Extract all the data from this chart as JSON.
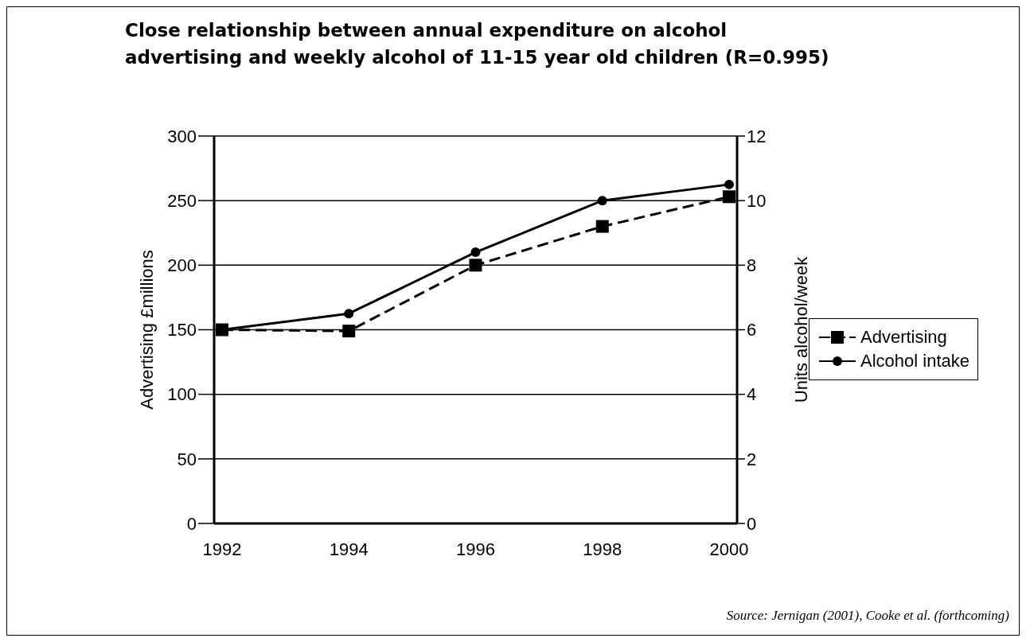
{
  "chart_data": {
    "type": "line",
    "title": "Close relationship between annual expenditure on alcohol advertising and weekly alcohol of 11-15 year old children (R=0.995)",
    "categories": [
      "1992",
      "1994",
      "1996",
      "1998",
      "2000"
    ],
    "series": [
      {
        "name": "Advertising",
        "color": "#000000",
        "values": [
          150,
          149,
          200,
          230,
          253
        ],
        "marker": "square",
        "line_style": "dashed"
      },
      {
        "name": "Alcohol intake",
        "color": "#000000",
        "values": [
          6.0,
          6.5,
          8.4,
          10.0,
          10.5
        ],
        "marker": "circle",
        "line_style": "solid",
        "axis": "y2"
      }
    ],
    "ylabel": "Advertising £millions",
    "y2label": "Units alcohol/week",
    "ylim": [
      0,
      300
    ],
    "yticks": [
      0,
      50,
      100,
      150,
      200,
      250,
      300
    ],
    "y2lim": [
      0,
      12
    ],
    "y2ticks": [
      0,
      2,
      4,
      6,
      8,
      10,
      12
    ],
    "grid": "y",
    "legend": "right",
    "annotations": [
      "Source: Jernigan (2001), Cooke et al. (forthcoming)"
    ]
  }
}
